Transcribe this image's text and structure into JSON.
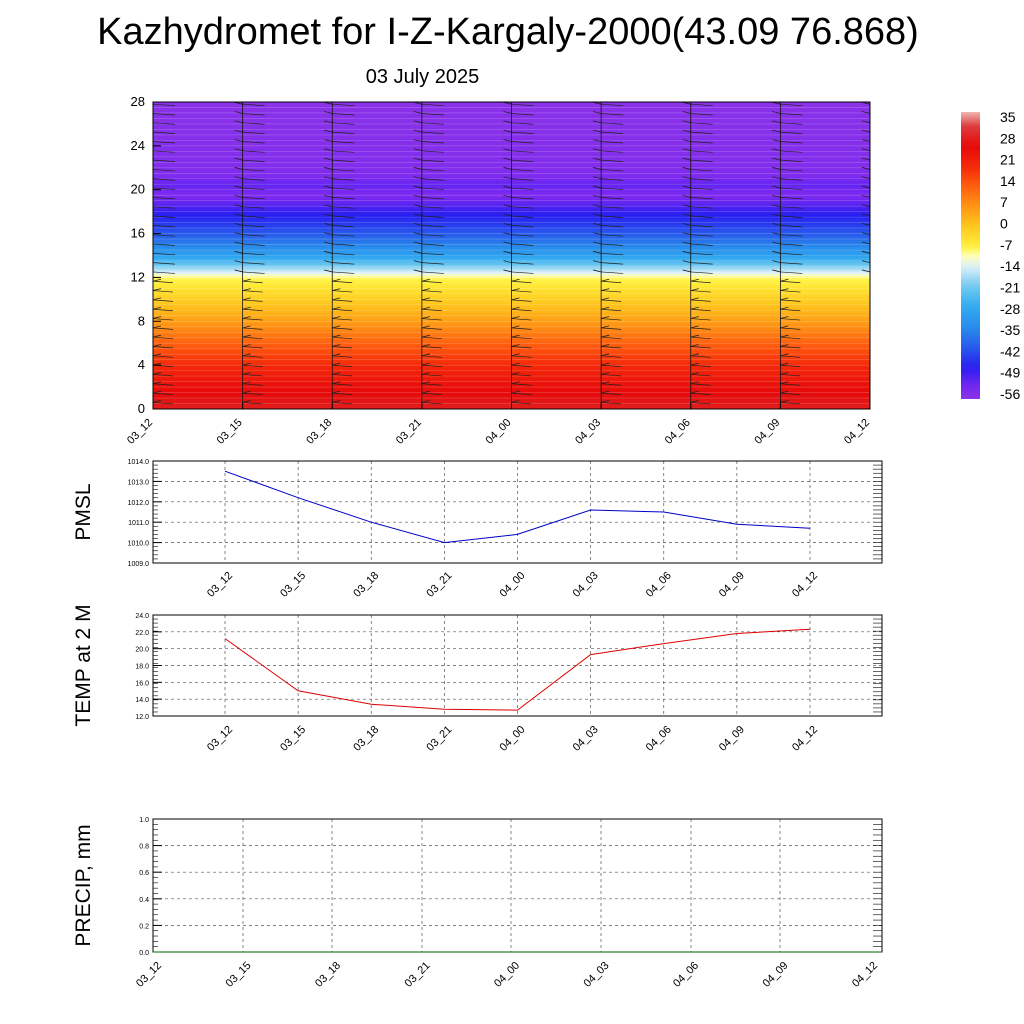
{
  "title": "Kazhydromet for I-Z-Kargaly-2000(43.09 76.868)",
  "date": "03 July 2025",
  "chart_data": [
    {
      "type": "heatmap",
      "title": "",
      "xlabel": "",
      "ylabel": "",
      "x_ticks": [
        "03_12",
        "03_15",
        "03_18",
        "03_21",
        "04_00",
        "04_03",
        "04_06",
        "04_09",
        "04_12"
      ],
      "y_ticks": [
        0,
        4,
        8,
        12,
        16,
        20,
        24,
        28
      ],
      "ylim": [
        0,
        28
      ],
      "colorbar": {
        "labels": [
          "35",
          "28",
          "21",
          "14",
          "7",
          "0",
          "-7",
          "-14",
          "-21",
          "-28",
          "-35",
          "-42",
          "-49",
          "-56"
        ],
        "range": [
          -60,
          40
        ]
      },
      "temperature_profile": {
        "level": [
          0,
          2,
          4,
          6,
          8,
          10,
          12,
          12.5,
          14,
          16,
          18,
          19.5,
          20.5,
          21.5,
          28
        ],
        "value": [
          31,
          27,
          21,
          14,
          6,
          -1,
          -8,
          -14,
          -30,
          -42,
          -50,
          -57,
          -54,
          -58,
          -60
        ]
      },
      "wind_barbs": "present at each time along altitude"
    },
    {
      "type": "line",
      "ylabel": "PMSL",
      "x": [
        "03_12",
        "03_15",
        "03_18",
        "03_21",
        "04_00",
        "04_03",
        "04_06",
        "04_09",
        "04_12"
      ],
      "series": [
        {
          "values": [
            1013.5,
            1012.2,
            1011.0,
            1010.0,
            1010.4,
            1011.6,
            1011.5,
            1010.9,
            1010.7
          ]
        }
      ],
      "y_ticks": [
        "1009.0",
        "1010.0",
        "1011.0",
        "1012.0",
        "1013.0",
        "1014.0"
      ],
      "ylim": [
        1009,
        1014
      ],
      "color": "#0000cc",
      "grid": true
    },
    {
      "type": "line",
      "ylabel": "TEMP at 2 M",
      "x": [
        "03_12",
        "03_15",
        "03_18",
        "03_21",
        "04_00",
        "04_03",
        "04_06",
        "04_09",
        "04_12"
      ],
      "series": [
        {
          "values": [
            21.2,
            15.0,
            13.4,
            12.8,
            12.7,
            19.3,
            20.6,
            21.8,
            22.3
          ]
        }
      ],
      "y_ticks": [
        "12.0",
        "14.0",
        "16.0",
        "18.0",
        "20.0",
        "22.0",
        "24.0"
      ],
      "ylim": [
        12,
        24
      ],
      "color": "#dd0000",
      "grid": true
    },
    {
      "type": "line",
      "ylabel": "PRECIP, mm",
      "x": [
        "03_12",
        "03_15",
        "03_18",
        "03_21",
        "04_00",
        "04_03",
        "04_06",
        "04_09",
        "04_12"
      ],
      "series": [
        {
          "values": [
            0,
            0,
            0,
            0,
            0,
            0,
            0,
            0,
            0
          ]
        }
      ],
      "y_ticks": [
        "0.0",
        "0.2",
        "0.4",
        "0.6",
        "0.8",
        "1.0"
      ],
      "ylim": [
        0,
        1
      ],
      "color": "#006600",
      "grid": true
    }
  ]
}
